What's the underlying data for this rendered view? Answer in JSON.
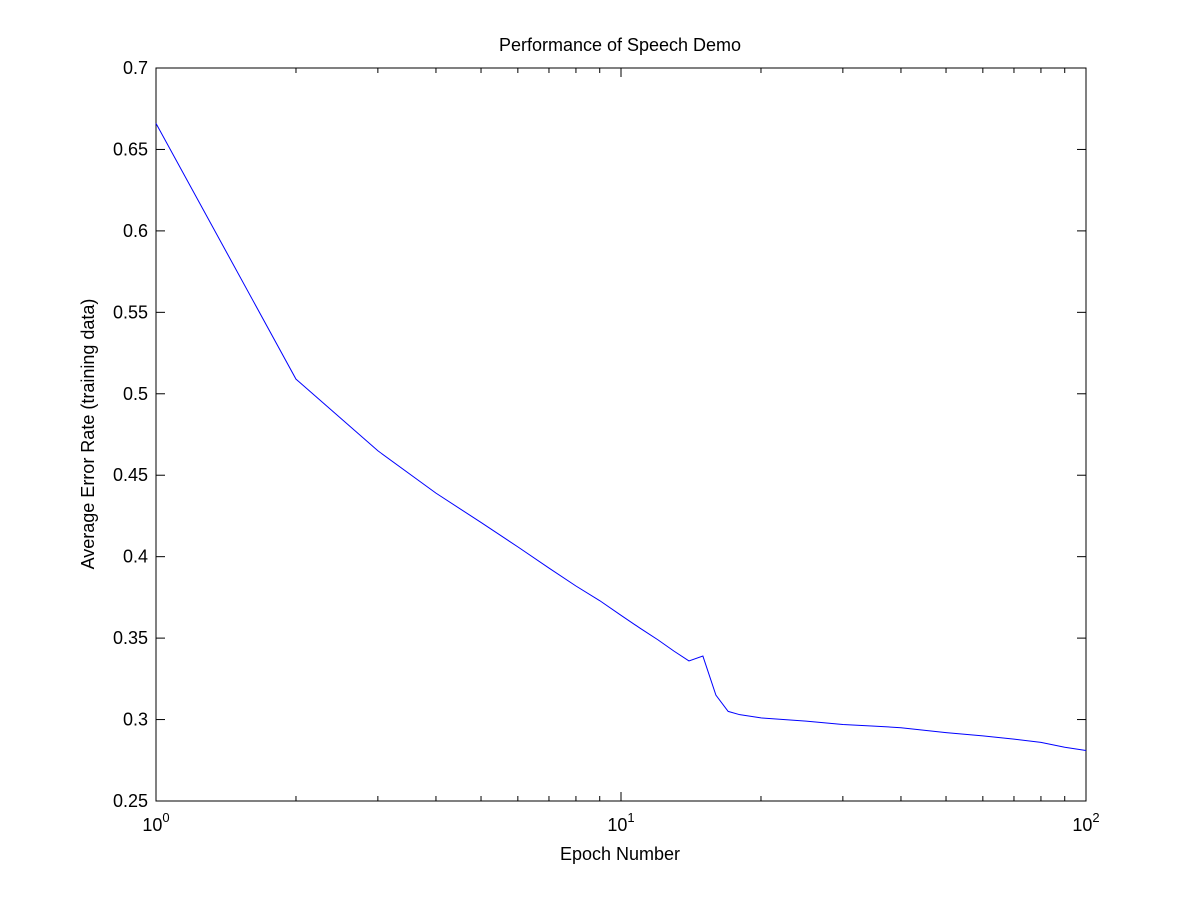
{
  "chart_data": {
    "type": "line",
    "title": "Performance of Speech Demo",
    "xlabel": "Epoch Number",
    "ylabel": "Average Error Rate (training data)",
    "xscale": "log",
    "xlim": [
      1,
      100
    ],
    "ylim": [
      0.25,
      0.7
    ],
    "grid": false,
    "legend": "none",
    "x_ticks": [
      {
        "value": 1,
        "base": "10",
        "exp": "0"
      },
      {
        "value": 10,
        "base": "10",
        "exp": "1"
      },
      {
        "value": 100,
        "base": "10",
        "exp": "2"
      }
    ],
    "y_ticks": [
      {
        "value": 0.25,
        "label": "0.25"
      },
      {
        "value": 0.3,
        "label": "0.3"
      },
      {
        "value": 0.35,
        "label": "0.35"
      },
      {
        "value": 0.4,
        "label": "0.4"
      },
      {
        "value": 0.45,
        "label": "0.45"
      },
      {
        "value": 0.5,
        "label": "0.5"
      },
      {
        "value": 0.55,
        "label": "0.55"
      },
      {
        "value": 0.6,
        "label": "0.6"
      },
      {
        "value": 0.65,
        "label": "0.65"
      },
      {
        "value": 0.7,
        "label": "0.7"
      }
    ],
    "series": [
      {
        "color": "#0000ff",
        "x": [
          1,
          2,
          3,
          4,
          5,
          6,
          7,
          8,
          9,
          10,
          11,
          12,
          13,
          14,
          15,
          16,
          17,
          18,
          20,
          25,
          30,
          35,
          40,
          50,
          60,
          70,
          80,
          90,
          100
        ],
        "y": [
          0.666,
          0.509,
          0.465,
          0.439,
          0.421,
          0.406,
          0.393,
          0.382,
          0.373,
          0.364,
          0.356,
          0.349,
          0.342,
          0.336,
          0.339,
          0.315,
          0.305,
          0.303,
          0.301,
          0.299,
          0.297,
          0.296,
          0.295,
          0.292,
          0.29,
          0.288,
          0.286,
          0.283,
          0.281
        ]
      }
    ]
  }
}
